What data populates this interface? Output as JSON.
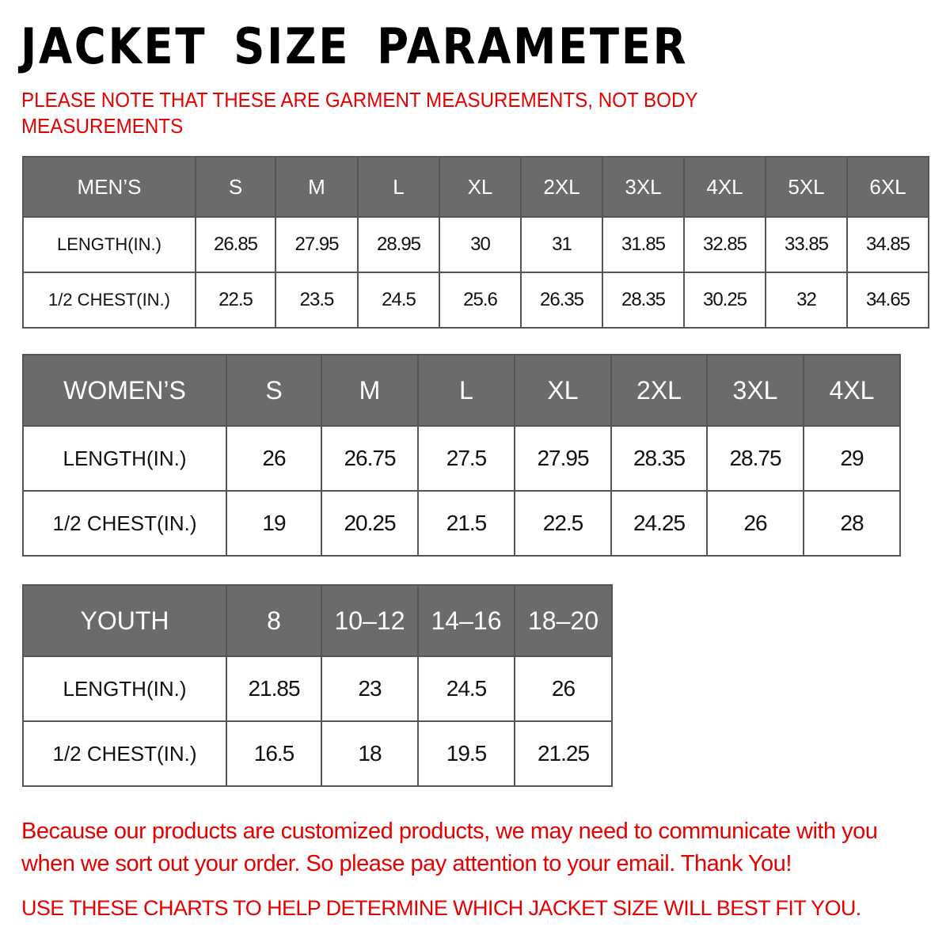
{
  "title": "JACKET SIZE PARAMETER",
  "note": "PLEASE NOTE THAT THESE ARE GARMENT MEASUREMENTS, NOT BODY MEASUREMENTS",
  "colors": {
    "header_bg": "#6b6b6b",
    "accent_red": "#e60000"
  },
  "tables": {
    "men": {
      "header": [
        "MEN’S",
        "S",
        "M",
        "L",
        "XL",
        "2XL",
        "3XL",
        "4XL",
        "5XL",
        "6XL"
      ],
      "rows": [
        [
          "LENGTH(IN.)",
          "26.85",
          "27.95",
          "28.95",
          "30",
          "31",
          "31.85",
          "32.85",
          "33.85",
          "34.85"
        ],
        [
          "1/2 CHEST(IN.)",
          "22.5",
          "23.5",
          "24.5",
          "25.6",
          "26.35",
          "28.35",
          "30.25",
          "32",
          "34.65"
        ]
      ]
    },
    "women": {
      "header": [
        "WOMEN’S",
        "S",
        "M",
        "L",
        "XL",
        "2XL",
        "3XL",
        "4XL"
      ],
      "rows": [
        [
          "LENGTH(IN.)",
          "26",
          "26.75",
          "27.5",
          "27.95",
          "28.35",
          "28.75",
          "29"
        ],
        [
          "1/2 CHEST(IN.)",
          "19",
          "20.25",
          "21.5",
          "22.5",
          "24.25",
          "26",
          "28"
        ]
      ]
    },
    "youth": {
      "header": [
        "YOUTH",
        "8",
        "10–12",
        "14–16",
        "18–20"
      ],
      "rows": [
        [
          "LENGTH(IN.)",
          "21.85",
          "23",
          "24.5",
          "26"
        ],
        [
          "1/2 CHEST(IN.)",
          "16.5",
          "18",
          "19.5",
          "21.25"
        ]
      ]
    }
  },
  "footer": {
    "message": "Because our products are customized products, we may need to communicate with you when we sort out your order. So please pay attention to your email. Thank You!",
    "instruction": "USE THESE CHARTS TO HELP DETERMINE WHICH JACKET SIZE WILL BEST FIT YOU."
  }
}
